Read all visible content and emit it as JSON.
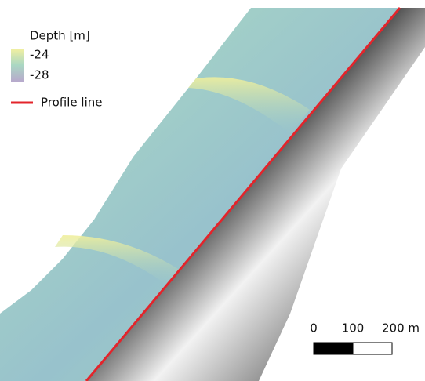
{
  "legend": {
    "title": "Depth [m]",
    "ramp_labels": [
      "-24",
      "-28"
    ],
    "line_label": "Profile line"
  },
  "scale_bar": {
    "labels": [
      "0",
      "100",
      "200 m"
    ]
  }
}
